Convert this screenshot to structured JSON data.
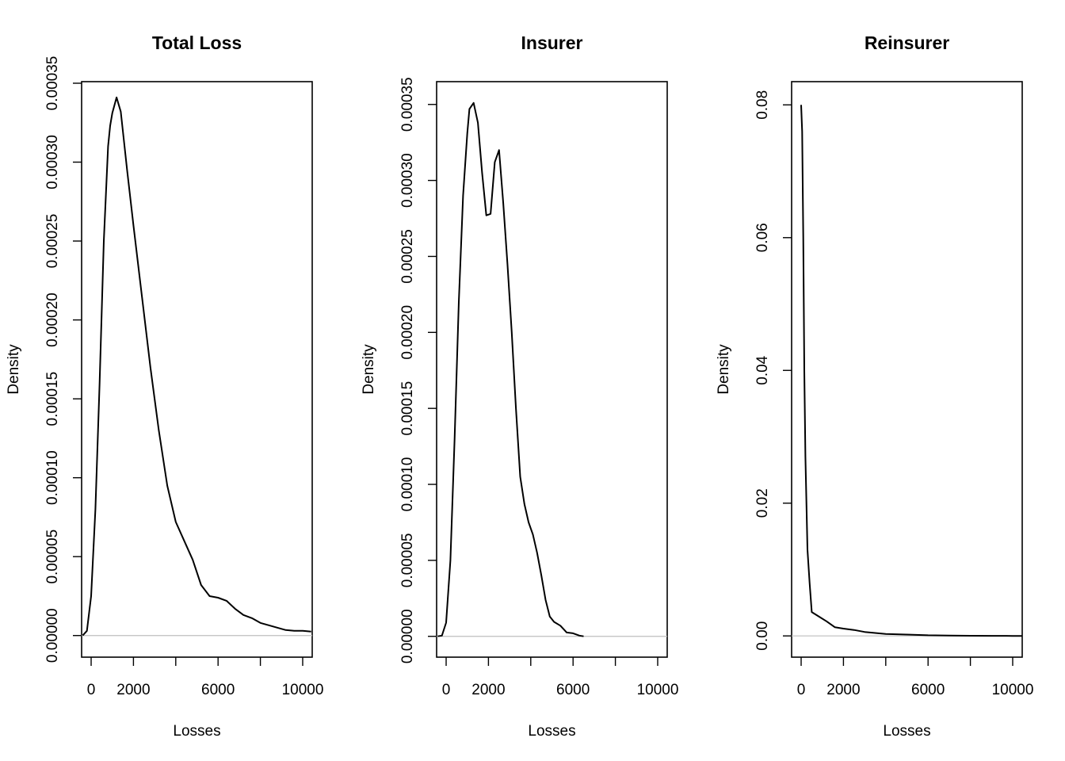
{
  "chart_data": [
    {
      "type": "line",
      "title": "Total Loss",
      "xlabel": "Losses",
      "ylabel": "Density",
      "xlim": [
        -450,
        10450
      ],
      "ylim": [
        -1.37e-05,
        0.000351
      ],
      "x_ticks": [
        0,
        2000,
        4000,
        6000,
        8000,
        10000
      ],
      "x_tick_labels": [
        "0",
        "2000",
        "",
        "6000",
        "",
        "10000"
      ],
      "y_ticks": [
        0,
        5e-05,
        0.0001,
        0.00015,
        0.0002,
        0.00025,
        0.0003,
        0.00035
      ],
      "y_tick_labels": [
        "0.00000",
        "0.00005",
        "0.00010",
        "0.00015",
        "0.00020",
        "0.00025",
        "0.00030",
        "0.00035"
      ],
      "grid": false,
      "zero_line": true,
      "series": [
        {
          "x": [
            -400,
            -200,
            0,
            200,
            400,
            600,
            800,
            900,
            1000,
            1200,
            1400,
            1700,
            2000,
            2400,
            2800,
            3200,
            3600,
            4000,
            4400,
            4800,
            5200,
            5600,
            6000,
            6400,
            6800,
            7200,
            7600,
            8000,
            8400,
            8800,
            9200,
            9600,
            10000,
            10400
          ],
          "y": [
            0.0,
            3e-06,
            2.5e-05,
            8e-05,
            0.00016,
            0.00025,
            0.00031,
            0.000323,
            0.000331,
            0.000341,
            0.000332,
            0.000295,
            0.00026,
            0.000215,
            0.00017,
            0.00013,
            9.5e-05,
            7.2e-05,
            6e-05,
            4.8e-05,
            3.2e-05,
            2.5e-05,
            2.4e-05,
            2.2e-05,
            1.7e-05,
            1.3e-05,
            1.1e-05,
            8e-06,
            6.5e-06,
            5e-06,
            3.5e-06,
            3e-06,
            3e-06,
            2.5e-06
          ]
        }
      ]
    },
    {
      "type": "line",
      "title": "Insurer",
      "xlabel": "Losses",
      "ylabel": "Density",
      "xlim": [
        -450,
        10450
      ],
      "ylim": [
        -1.37e-05,
        0.000365
      ],
      "x_ticks": [
        0,
        2000,
        4000,
        6000,
        8000,
        10000
      ],
      "x_tick_labels": [
        "0",
        "2000",
        "",
        "6000",
        "",
        "10000"
      ],
      "y_ticks": [
        0,
        5e-05,
        0.0001,
        0.00015,
        0.0002,
        0.00025,
        0.0003,
        0.00035
      ],
      "y_tick_labels": [
        "0.00000",
        "0.00005",
        "0.00010",
        "0.00015",
        "0.00020",
        "0.00025",
        "0.00030",
        "0.00035"
      ],
      "grid": false,
      "zero_line": true,
      "series": [
        {
          "x": [
            -400,
            -200,
            0,
            200,
            400,
            600,
            800,
            1000,
            1100,
            1300,
            1500,
            1700,
            1900,
            2100,
            2300,
            2500,
            2700,
            2900,
            3100,
            3300,
            3500,
            3700,
            3900,
            4100,
            4300,
            4500,
            4700,
            4900,
            5100,
            5400,
            5700,
            6000,
            6300,
            6500
          ],
          "y": [
            0.0,
            5e-07,
            9e-06,
            5e-05,
            0.00013,
            0.00022,
            0.00029,
            0.000331,
            0.000347,
            0.000351,
            0.000338,
            0.000305,
            0.000277,
            0.000278,
            0.000312,
            0.00032,
            0.000285,
            0.000245,
            0.0002,
            0.00015,
            0.000105,
            8.7e-05,
            7.5e-05,
            6.7e-05,
            5.5e-05,
            4e-05,
            2.4e-05,
            1.3e-05,
            9.5e-06,
            7e-06,
            2.5e-06,
            2e-06,
            5e-07,
            0.0
          ]
        }
      ]
    },
    {
      "type": "line",
      "title": "Reinsurer",
      "xlabel": "Losses",
      "ylabel": "Density",
      "xlim": [
        -450,
        10450
      ],
      "ylim": [
        -0.0032,
        0.0835
      ],
      "x_ticks": [
        0,
        2000,
        4000,
        6000,
        8000,
        10000
      ],
      "x_tick_labels": [
        "0",
        "2000",
        "",
        "6000",
        "",
        "10000"
      ],
      "y_ticks": [
        0,
        0.02,
        0.04,
        0.06,
        0.08
      ],
      "y_tick_labels": [
        "0.00",
        "0.02",
        "0.04",
        "0.06",
        "0.08"
      ],
      "grid": false,
      "zero_line": true,
      "series": [
        {
          "x": [
            0,
            50,
            100,
            150,
            200,
            300,
            400,
            500,
            800,
            1200,
            1600,
            2000,
            2500,
            3000,
            4000,
            5000,
            6000,
            7000,
            8000,
            9000,
            10000,
            10450
          ],
          "y": [
            0.08,
            0.076,
            0.06,
            0.04,
            0.027,
            0.013,
            0.008,
            0.0036,
            0.003,
            0.0022,
            0.0013,
            0.0011,
            0.0009,
            0.0006,
            0.0003,
            0.0002,
            0.0001,
            6e-05,
            3e-05,
            1e-05,
            0.0,
            0.0
          ]
        }
      ]
    }
  ]
}
